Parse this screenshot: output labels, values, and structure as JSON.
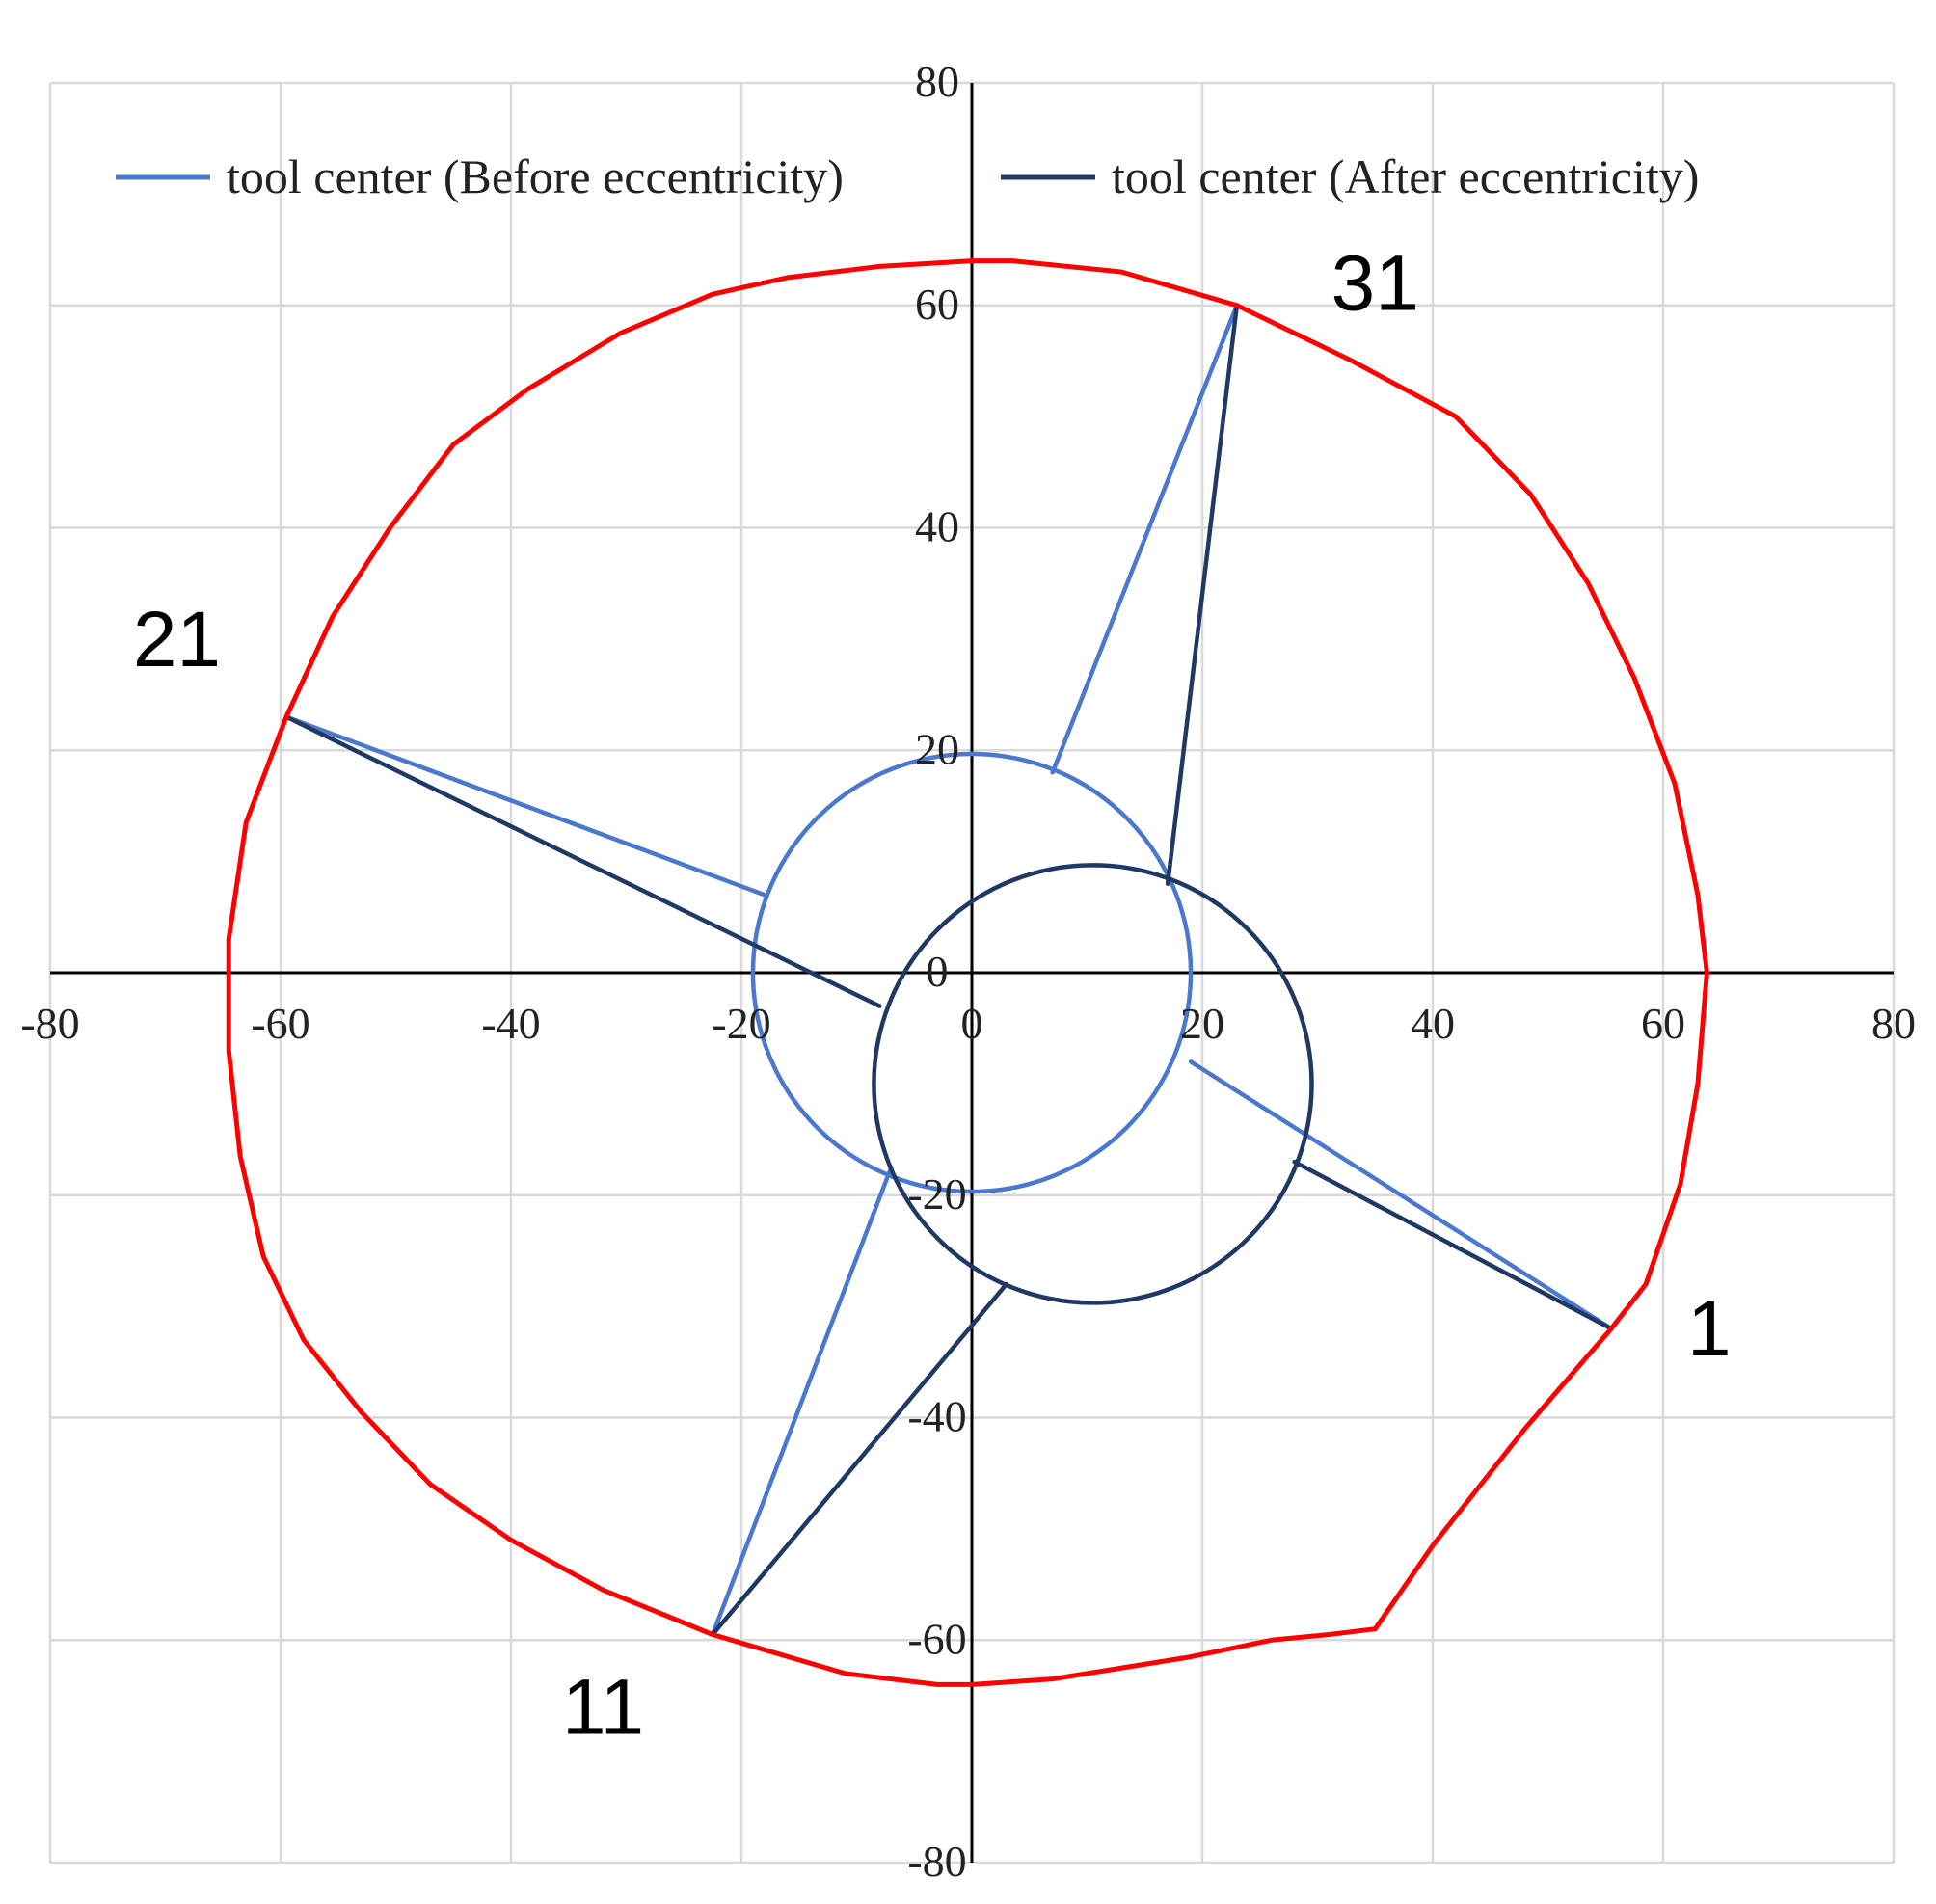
{
  "chart_data": {
    "type": "scatter",
    "xlim": [
      -80,
      80
    ],
    "ylim": [
      -80,
      80
    ],
    "x_ticks": [
      "-80",
      "-60",
      "-40",
      "-20",
      "0",
      "20",
      "40",
      "60",
      "80"
    ],
    "y_ticks": [
      "-80",
      "-60",
      "-40",
      "-20",
      "0",
      "20",
      "40",
      "60",
      "80"
    ],
    "grid": true,
    "legend_position": "top",
    "colors": {
      "before": "#4a78cf",
      "after": "#1f3864",
      "profile": "#ff0000",
      "axis": "#000000",
      "grid": "#d9d9d9"
    },
    "legend": [
      {
        "key": "before",
        "label": "tool center (Before eccentricity)"
      },
      {
        "key": "after",
        "label": "tool center (After eccentricity)"
      }
    ],
    "point_labels": [
      {
        "text": "1",
        "x": 64,
        "y": -32
      },
      {
        "text": "11",
        "x": -32,
        "y": -66
      },
      {
        "text": "21",
        "x": -69,
        "y": 30
      },
      {
        "text": "31",
        "x": 35,
        "y": 62
      }
    ],
    "series": [
      {
        "name": "tool center (Before eccentricity)",
        "key": "before",
        "circle": {
          "cx": 0,
          "cy": 0,
          "r": 19
        },
        "spokes": [
          {
            "from": [
              19,
              -8
            ],
            "to": [
              55.5,
              -32
            ]
          },
          {
            "from": [
              -7,
              -17.5
            ],
            "to": [
              -22.5,
              -59.5
            ]
          },
          {
            "from": [
              -18,
              7
            ],
            "to": [
              -59.5,
              23
            ]
          },
          {
            "from": [
              7,
              18
            ],
            "to": [
              23,
              60
            ]
          }
        ]
      },
      {
        "name": "tool center (After eccentricity)",
        "key": "after",
        "circle": {
          "cx": 10.5,
          "cy": -10,
          "r": 19
        },
        "spokes": [
          {
            "from": [
              28,
              -17
            ],
            "to": [
              55.5,
              -32
            ]
          },
          {
            "from": [
              3,
              -28
            ],
            "to": [
              -22.5,
              -59.5
            ]
          },
          {
            "from": [
              -8,
              -3
            ],
            "to": [
              -59.5,
              23
            ]
          },
          {
            "from": [
              17,
              8
            ],
            "to": [
              23,
              60
            ]
          }
        ]
      },
      {
        "name": "",
        "key": "profile",
        "points": [
          [
            0,
            64
          ],
          [
            3.5,
            64
          ],
          [
            13,
            63
          ],
          [
            23,
            60
          ],
          [
            33,
            55
          ],
          [
            42,
            50
          ],
          [
            48.5,
            43
          ],
          [
            53.5,
            35
          ],
          [
            57.5,
            26.5
          ],
          [
            61,
            17
          ],
          [
            63,
            7
          ],
          [
            63.8,
            0
          ],
          [
            63,
            -10
          ],
          [
            61.5,
            -19
          ],
          [
            58.5,
            -28
          ],
          [
            55.5,
            -32
          ],
          [
            48,
            -41
          ],
          [
            40,
            -51.5
          ],
          [
            35,
            -59
          ],
          [
            31,
            -59.5
          ],
          [
            26,
            -60
          ],
          [
            19,
            -61.5
          ],
          [
            10,
            -63
          ],
          [
            7,
            -63.5
          ],
          [
            0,
            -64
          ],
          [
            -3,
            -64
          ],
          [
            -11,
            -63
          ],
          [
            -22.5,
            -59.5
          ],
          [
            -32,
            -55.5
          ],
          [
            -40,
            -51
          ],
          [
            -47,
            -46
          ],
          [
            -53,
            -39.5
          ],
          [
            -58,
            -33
          ],
          [
            -61.5,
            -25.5
          ],
          [
            -63.5,
            -16.5
          ],
          [
            -64.5,
            -7
          ],
          [
            -64.5,
            3
          ],
          [
            -63,
            13.5
          ],
          [
            -59.5,
            23
          ],
          [
            -55.5,
            32
          ],
          [
            -50.5,
            40
          ],
          [
            -45,
            47.5
          ],
          [
            -38.5,
            52.5
          ],
          [
            -30.5,
            57.5
          ],
          [
            -22.5,
            61
          ],
          [
            -16,
            62.5
          ],
          [
            -8,
            63.5
          ],
          [
            0,
            64
          ]
        ]
      }
    ]
  }
}
